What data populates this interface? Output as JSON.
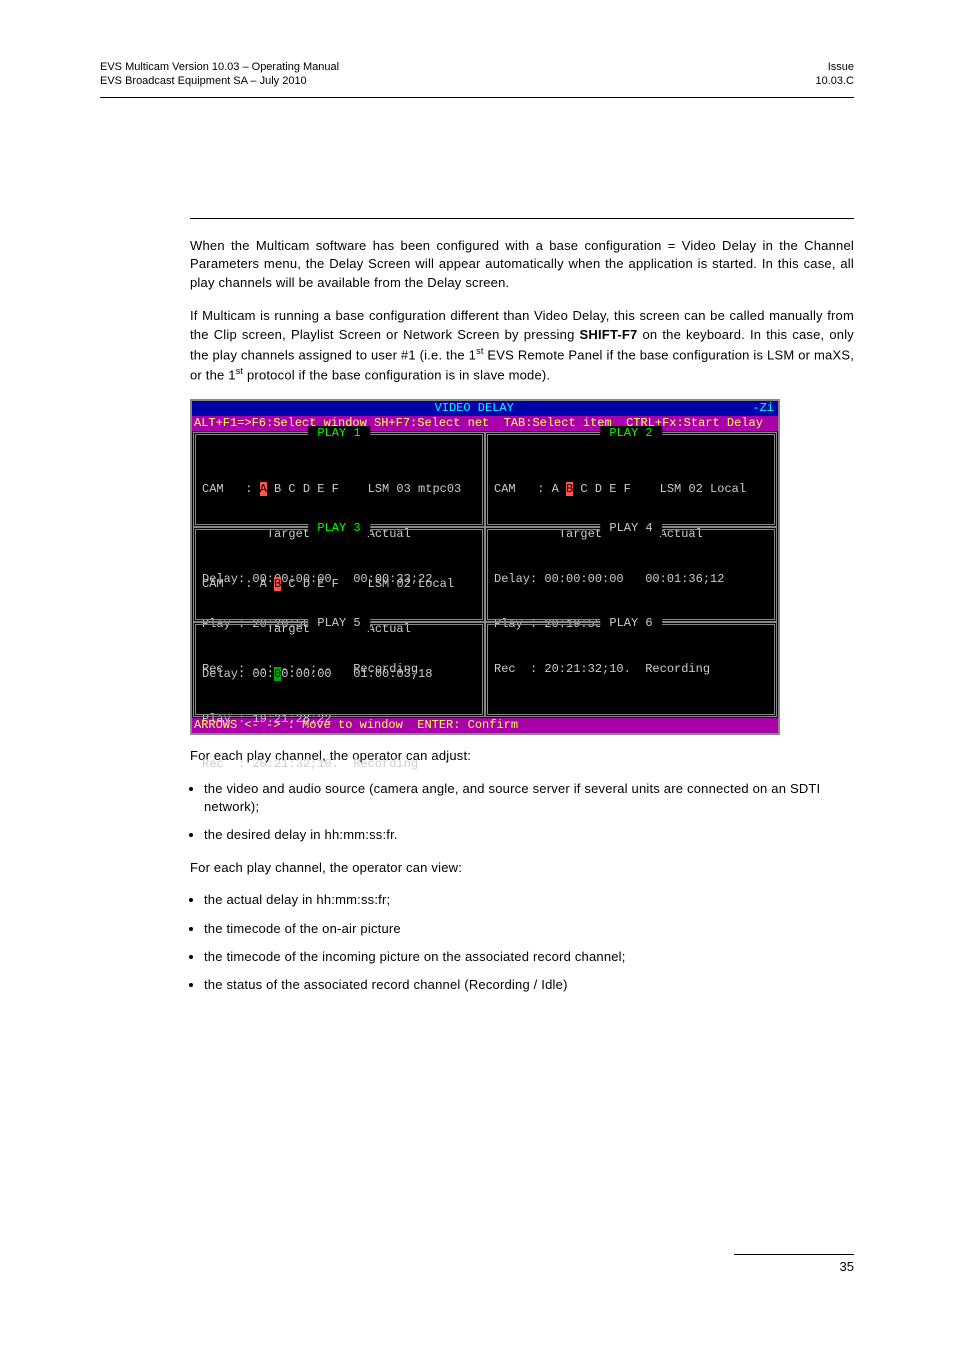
{
  "header": {
    "left_line1": "EVS Multicam Version 10.03 – Operating Manual",
    "left_line2": "EVS Broadcast Equipment SA – July 2010",
    "right_line1": "Issue",
    "right_line2": "10.03.C"
  },
  "para1": "When the Multicam software has been configured with a base configuration = Video Delay in the Channel Parameters menu, the Delay Screen will appear automatically when the application is started. In this case, all play channels will be available from the Delay screen.",
  "para2_a": "If Multicam is running a base configuration different than Video Delay, this screen can be called manually from the Clip screen, Playlist Screen or Network Screen by pressing ",
  "para2_bold": "SHIFT-F7",
  "para2_b": " on the keyboard. In this case, only the play channels assigned to user #1 (i.e. the 1",
  "para2_c": " EVS Remote Panel if the base configuration is LSM or maXS, or the 1",
  "para2_d": " protocol if the base configuration is in slave mode).",
  "terminal": {
    "title": "VIDEO DELAY",
    "title_right": "-Zi",
    "menu": "ALT+F1=>F6:Select window SH+F7:Select net  TAB:Select item  CTRL+Fx:Start Delay",
    "panels": {
      "p1": {
        "label": " PLAY 1 ",
        "label_class": "green",
        "cam_prefix": "CAM   : ",
        "cam_hl": "A",
        "cam_rest": " B C D E F    LSM 03 mtpc03",
        "line2": "         Target        Actual",
        "line3": "Delay: 00:00:00:00   00:00:33;22",
        "line4": "Play : 20:20:58;13",
        "line5": "Rec  : --:--:--;--   Recording"
      },
      "p2": {
        "label": " PLAY 2 ",
        "label_class": "green",
        "cam_prefix": "CAM   : A ",
        "cam_hl": "B",
        "cam_rest": " C D E F    LSM 02 Local",
        "line2": "         Target        Actual",
        "line3": "Delay: 00:00:00:00   00:01:36;12",
        "line4": "Play : 20:19:55;28",
        "line5": "Rec  : 20:21:32;10.  Recording"
      },
      "p3": {
        "label": " PLAY 3 ",
        "label_class": "green",
        "cam_prefix": "CAM   : A ",
        "cam_hl": "B",
        "cam_rest": " C D E F    LSM 02 Local",
        "line2": "         Target        Actual",
        "line3_a": "Delay: 00:",
        "line3_hl": "0",
        "line3_b": "0:00:00   01:00:03;18",
        "line4": "Play : 19:21:28;22",
        "line5": "Rec  : 20:21:32;10.  Recording"
      },
      "p4": {
        "label": " PLAY 4 ",
        "label_class": "grey"
      },
      "p5": {
        "label": " PLAY 5 ",
        "label_class": "grey"
      },
      "p6": {
        "label": " PLAY 6 ",
        "label_class": "grey"
      }
    },
    "footer": "ARROWS <- -> : Move to window  ENTER: Confirm"
  },
  "para3": "For each play channel, the operator can adjust:",
  "bullets1": {
    "b1": "the video and audio source (camera angle, and source server if several units are connected on an SDTI network);",
    "b2": "the desired delay in hh:mm:ss:fr."
  },
  "para4": "For each play channel, the operator can view:",
  "bullets2": {
    "b1": "the actual delay in hh:mm:ss:fr;",
    "b2": "the timecode of the on-air picture",
    "b3": "the timecode of the incoming picture on the associated record channel;",
    "b4": "the status of the associated record channel (Recording / Idle)"
  },
  "page_number": "35"
}
